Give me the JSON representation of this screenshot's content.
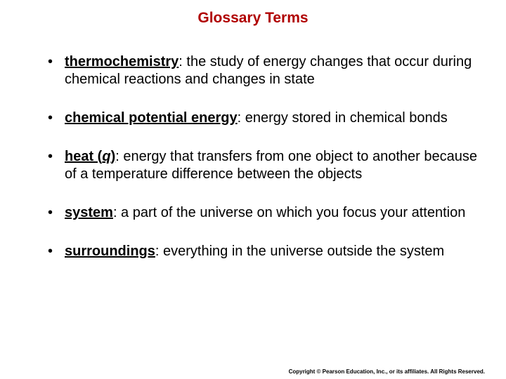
{
  "title": "Glossary Terms",
  "title_color": "#b00000",
  "background_color": "#ffffff",
  "text_color": "#000000",
  "font_family": "Arial",
  "title_fontsize": 21,
  "body_fontsize": 20,
  "terms": [
    {
      "name": "thermochemistry",
      "italic_in_name": "",
      "definition": ": the study of energy changes that occur during chemical reactions and changes in state"
    },
    {
      "name": "chemical potential energy",
      "italic_in_name": "",
      "definition": ": energy stored in chemical bonds"
    },
    {
      "name": "heat (",
      "italic_in_name": "q",
      "name_suffix": ")",
      "definition": ": energy that transfers from one object to another because of a temperature difference between the objects"
    },
    {
      "name": "system",
      "italic_in_name": "",
      "definition": ": a part of the universe on which you focus your attention"
    },
    {
      "name": "surroundings",
      "italic_in_name": "",
      "definition": ": everything in the universe outside the system"
    }
  ],
  "copyright": "Copyright © Pearson Education, Inc., or its affiliates. All Rights Reserved."
}
